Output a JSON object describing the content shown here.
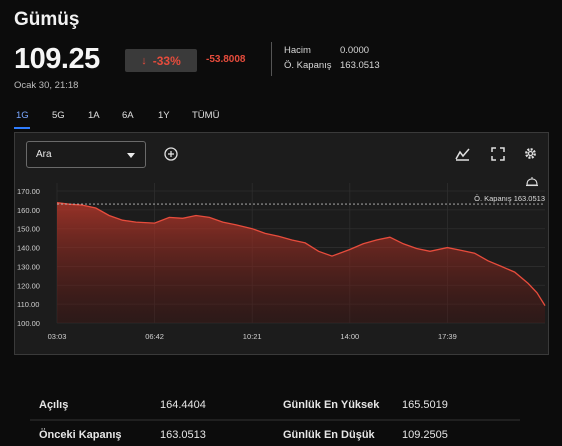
{
  "header": {
    "title": "Gümüş",
    "price": "109.25",
    "change_pct": "-33%",
    "change_abs": "-53.8008",
    "timestamp": "Ocak 30, 21:18",
    "stats": [
      {
        "label": "Hacim",
        "value": "0.0000"
      },
      {
        "label": "Ö. Kapanış",
        "value": "163.0513"
      }
    ]
  },
  "tabs": [
    {
      "label": "1G",
      "active": true
    },
    {
      "label": "5G",
      "active": false
    },
    {
      "label": "1A",
      "active": false
    },
    {
      "label": "6A",
      "active": false
    },
    {
      "label": "1Y",
      "active": false
    },
    {
      "label": "TÜMÜ",
      "active": false
    }
  ],
  "toolbar": {
    "dropdown_value": "Ara",
    "icons": [
      "add-indicator-icon",
      "chart-type-icon",
      "fullscreen-icon",
      "settings-icon"
    ]
  },
  "colors": {
    "down": "#e74c3c",
    "accent": "#2f7dff",
    "panel_bg": "#1c1c1c"
  },
  "chart_data": {
    "type": "area",
    "ylim": [
      100,
      170
    ],
    "y_ticks": [
      "100.00",
      "110.00",
      "120.00",
      "130.00",
      "140.00",
      "150.00",
      "160.00",
      "170.00"
    ],
    "x_ticks": [
      "03:03",
      "06:42",
      "10:21",
      "14:00",
      "17:39"
    ],
    "reference_line": {
      "label": "Ö. Kapanış 163.0513",
      "value": 163.0513
    },
    "series": [
      {
        "x": [
          "03:03",
          "03:30",
          "04:00",
          "04:30",
          "05:00",
          "05:30",
          "06:00",
          "06:42",
          "07:15",
          "07:45",
          "08:15",
          "08:45",
          "09:15",
          "09:45",
          "10:21",
          "10:50",
          "11:20",
          "11:50",
          "12:20",
          "12:50",
          "13:20",
          "14:00",
          "14:30",
          "15:00",
          "15:30",
          "16:00",
          "16:30",
          "17:00",
          "17:39",
          "18:10",
          "18:40",
          "19:10",
          "19:40",
          "20:10",
          "20:40",
          "21:00",
          "21:18"
        ],
        "values": [
          163.8,
          163.0,
          162.5,
          161.0,
          157.0,
          154.5,
          153.5,
          153.0,
          156.0,
          155.5,
          157.0,
          156.0,
          153.5,
          152.0,
          150.0,
          147.5,
          146.0,
          144.0,
          142.5,
          138.0,
          135.5,
          139.0,
          142.0,
          144.0,
          145.5,
          142.0,
          139.5,
          138.0,
          140.0,
          138.5,
          137.0,
          133.0,
          130.0,
          127.0,
          121.0,
          116.0,
          109.25
        ]
      }
    ]
  },
  "stats_table": [
    {
      "label": "Açılış",
      "value": "164.4404",
      "label2": "Günlük En Yüksek",
      "value2": "165.5019"
    },
    {
      "label": "Önceki Kapanış",
      "value": "163.0513",
      "label2": "Günlük En Düşük",
      "value2": "109.2505"
    }
  ]
}
